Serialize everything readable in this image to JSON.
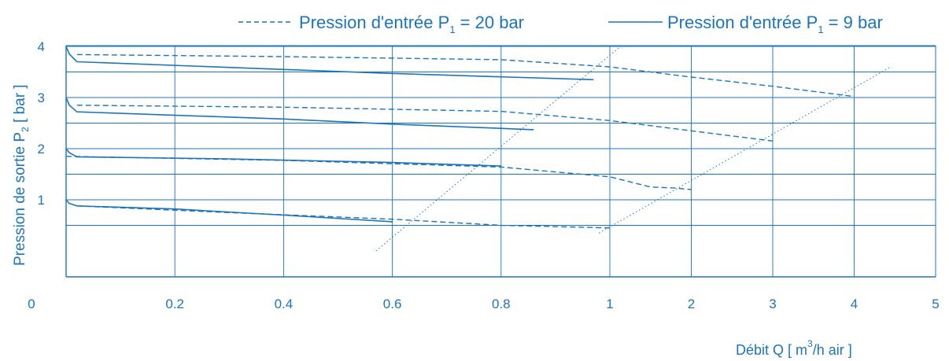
{
  "chart_data": {
    "type": "line",
    "legend_position": "top-right",
    "legend": [
      {
        "style": "dashed",
        "text_main": "Pression d'entrée P",
        "text_sub": "1",
        "text_tail": " = 20 bar"
      },
      {
        "style": "solid",
        "text_main": "Pression d'entrée P",
        "text_sub": "1",
        "text_tail": " = 9 bar"
      }
    ],
    "xlabel": {
      "main": "Débit Q [ m",
      "sup": "3",
      "tail": "/h air ]"
    },
    "ylabel": {
      "main": "Pression de sortie P",
      "sub": "2",
      "tail": " [ bar ]"
    },
    "x_ticks": [
      "0",
      "0.2",
      "0.4",
      "0.6",
      "0.8",
      "1",
      "2",
      "3",
      "4",
      "5"
    ],
    "y_ticks": [
      "1",
      "2",
      "3",
      "4"
    ],
    "x_scale": "piecewise: linear 0–1, then linear 1–5 (compressed)",
    "ylim": [
      -0.1,
      4.5
    ],
    "grid": true,
    "series": [
      {
        "style": "solid",
        "points": [
          [
            0,
            4.0
          ],
          [
            0.006,
            3.85
          ],
          [
            0.02,
            3.7
          ],
          [
            0.4,
            3.55
          ],
          [
            0.6,
            3.47
          ],
          [
            0.97,
            3.35
          ]
        ]
      },
      {
        "style": "solid",
        "points": [
          [
            0,
            3.0
          ],
          [
            0.006,
            2.85
          ],
          [
            0.02,
            2.72
          ],
          [
            0.4,
            2.58
          ],
          [
            0.6,
            2.48
          ],
          [
            0.86,
            2.37
          ]
        ]
      },
      {
        "style": "solid",
        "points": [
          [
            0,
            2.0
          ],
          [
            0.006,
            1.92
          ],
          [
            0.02,
            1.84
          ],
          [
            0.3,
            1.8
          ],
          [
            0.6,
            1.73
          ],
          [
            0.8,
            1.66
          ]
        ]
      },
      {
        "style": "solid",
        "points": [
          [
            0,
            1.0
          ],
          [
            0.006,
            0.93
          ],
          [
            0.02,
            0.88
          ],
          [
            0.2,
            0.82
          ],
          [
            0.4,
            0.7
          ],
          [
            0.6,
            0.57
          ]
        ]
      },
      {
        "style": "dashed",
        "points": [
          [
            0.02,
            3.84
          ],
          [
            0.4,
            3.8
          ],
          [
            0.8,
            3.74
          ],
          [
            1,
            3.6
          ],
          [
            2,
            3.4
          ],
          [
            3,
            3.22
          ],
          [
            4,
            3.02
          ]
        ]
      },
      {
        "style": "dashed",
        "points": [
          [
            0.02,
            2.85
          ],
          [
            0.4,
            2.81
          ],
          [
            0.8,
            2.73
          ],
          [
            1,
            2.55
          ],
          [
            2,
            2.35
          ],
          [
            3,
            2.15
          ]
        ]
      },
      {
        "style": "dashed",
        "points": [
          [
            0,
            1.85
          ],
          [
            0.4,
            1.77
          ],
          [
            0.8,
            1.64
          ],
          [
            1,
            1.45
          ],
          [
            1.5,
            1.25
          ],
          [
            1.8,
            1.23
          ],
          [
            2,
            1.2
          ]
        ]
      },
      {
        "style": "dashed",
        "points": [
          [
            0.02,
            0.88
          ],
          [
            0.3,
            0.75
          ],
          [
            0.6,
            0.62
          ],
          [
            0.8,
            0.5
          ],
          [
            1,
            0.45
          ]
        ]
      },
      {
        "style": "dotted",
        "points": [
          [
            0.57,
            0.0
          ],
          [
            1.13,
            4.0
          ]
        ]
      },
      {
        "style": "dotted",
        "points": [
          [
            0.98,
            0.35
          ],
          [
            4.45,
            3.6
          ]
        ]
      }
    ]
  }
}
